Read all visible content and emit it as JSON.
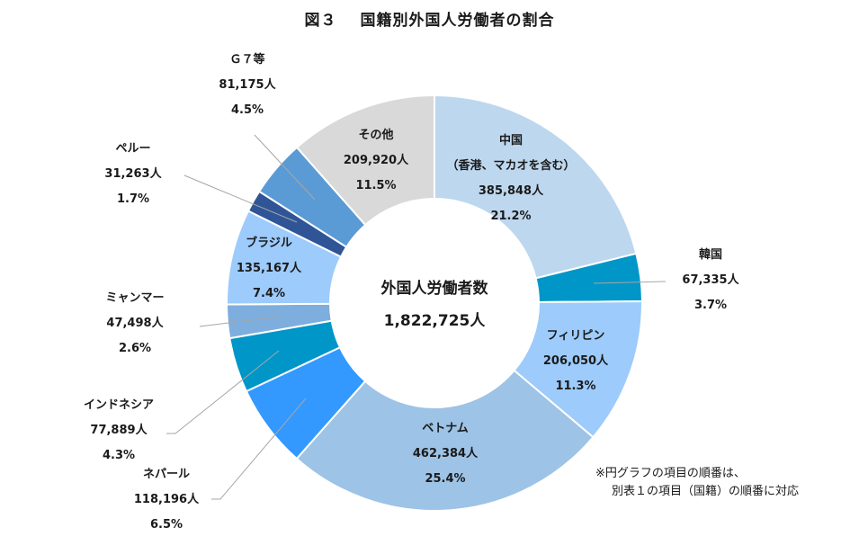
{
  "title": {
    "prefix": "図３",
    "text": "国籍別外国人労働者の割合"
  },
  "center": {
    "label": "外国人労働者数",
    "total": "1,822,725人"
  },
  "note": {
    "line1": "※円グラフの項目の順番は、",
    "line2": "別表１の項目（国籍）の順番に対応"
  },
  "chart_data": {
    "type": "pie",
    "donut": true,
    "title": "図３　国籍別外国人労働者の割合",
    "total_label": "外国人労働者数",
    "total": 1822725,
    "total_text": "1,822,725人",
    "unit": "人",
    "slices": [
      {
        "name": "中国",
        "sub": "（香港、マカオを含む）",
        "value": 385848,
        "value_text": "385,848人",
        "percent": 21.2,
        "percent_text": "21.2%",
        "color": "#bdd7ee",
        "label_pos": "inside"
      },
      {
        "name": "韓国",
        "value": 67335,
        "value_text": "67,335人",
        "percent": 3.7,
        "percent_text": "3.7%",
        "color": "#0096c8",
        "label_pos": "outside-right"
      },
      {
        "name": "フィリピン",
        "value": 206050,
        "value_text": "206,050人",
        "percent": 11.3,
        "percent_text": "11.3%",
        "color": "#9dcbfb",
        "label_pos": "inside"
      },
      {
        "name": "ベトナム",
        "value": 462384,
        "value_text": "462,384人",
        "percent": 25.4,
        "percent_text": "25.4%",
        "color": "#9dc3e6",
        "label_pos": "inside"
      },
      {
        "name": "ネパール",
        "value": 118196,
        "value_text": "118,196人",
        "percent": 6.5,
        "percent_text": "6.5%",
        "color": "#3399ff",
        "label_pos": "outside-left"
      },
      {
        "name": "インドネシア",
        "value": 77889,
        "value_text": "77,889人",
        "percent": 4.3,
        "percent_text": "4.3%",
        "color": "#0096c8",
        "label_pos": "outside-left"
      },
      {
        "name": "ミャンマー",
        "value": 47498,
        "value_text": "47,498人",
        "percent": 2.6,
        "percent_text": "2.6%",
        "color": "#7eaedd",
        "label_pos": "outside-left"
      },
      {
        "name": "ブラジル",
        "value": 135167,
        "value_text": "135,167人",
        "percent": 7.4,
        "percent_text": "7.4%",
        "color": "#9dcbfb",
        "label_pos": "inside"
      },
      {
        "name": "ペルー",
        "value": 31263,
        "value_text": "31,263人",
        "percent": 1.7,
        "percent_text": "1.7%",
        "color": "#2f5597",
        "label_pos": "outside-left"
      },
      {
        "name": "Ｇ７等",
        "value": 81175,
        "value_text": "81,175人",
        "percent": 4.5,
        "percent_text": "4.5%",
        "color": "#5b9bd5",
        "label_pos": "outside-top"
      },
      {
        "name": "その他",
        "value": 209920,
        "value_text": "209,920人",
        "percent": 11.5,
        "percent_text": "11.5%",
        "color": "#d9d9d9",
        "label_pos": "inside"
      }
    ]
  }
}
